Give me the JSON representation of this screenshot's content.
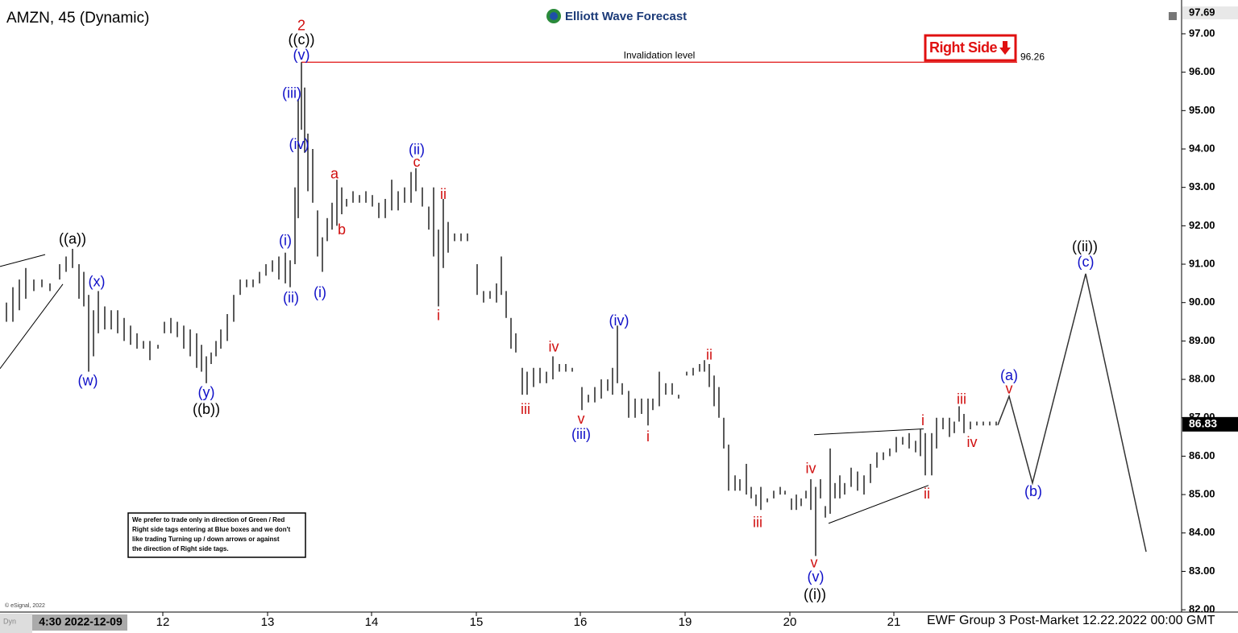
{
  "chart_data": {
    "type": "ohlc",
    "title": "AMZN, 45 (Dynamic)",
    "logo": "Elliott Wave Forecast",
    "tag": "Right Side",
    "footer": "EWF Group 3 Post-Market 12.22.2022 00:00 GMT",
    "copyright": "© eSignal, 2022",
    "corner": "Dyn",
    "note": [
      "We prefer to trade only in direction of Green / Red",
      "Right side tags entering at Blue boxes and we don't",
      "like trading Turning up / down arrows or against",
      "the direction of Right side tags."
    ],
    "xlim": [
      0,
      146.5
    ],
    "ylim": [
      81.94,
      97.88
    ],
    "xticks": [
      {
        "value": 20.2,
        "label": "12"
      },
      {
        "value": 33.2,
        "label": "13"
      },
      {
        "value": 46.1,
        "label": "14"
      },
      {
        "value": 59.1,
        "label": "15"
      },
      {
        "value": 72.0,
        "label": "16"
      },
      {
        "value": 85.0,
        "label": "19"
      },
      {
        "value": 98.0,
        "label": "20"
      },
      {
        "value": 110.9,
        "label": "21"
      }
    ],
    "cursor_label": {
      "value": 10.0,
      "label": "4:30 2022-12-09"
    },
    "yticks": [
      {
        "value": 82,
        "label": "82.00"
      },
      {
        "value": 83,
        "label": "83.00"
      },
      {
        "value": 84,
        "label": "84.00"
      },
      {
        "value": 85,
        "label": "85.00"
      },
      {
        "value": 86,
        "label": "86.00"
      },
      {
        "value": 87,
        "label": "87.00"
      },
      {
        "value": 88,
        "label": "88.00"
      },
      {
        "value": 89,
        "label": "89.00"
      },
      {
        "value": 90,
        "label": "90.00"
      },
      {
        "value": 91,
        "label": "91.00"
      },
      {
        "value": 92,
        "label": "92.00"
      },
      {
        "value": 93,
        "label": "93.00"
      },
      {
        "value": 94,
        "label": "94.00"
      },
      {
        "value": 95,
        "label": "95.00"
      },
      {
        "value": 96,
        "label": "96.00"
      },
      {
        "value": 97,
        "label": "97.00"
      }
    ],
    "top_price": 97.69,
    "last_price": 86.83,
    "bar_color": "#000000",
    "invalidation": {
      "value": 96.26,
      "label": "Invalidation level",
      "x": [
        37.4,
        126.2
      ],
      "color": "#e01010"
    },
    "bars": {
      "x": [
        0.8,
        1.6,
        2.4,
        3.2,
        4.2,
        5.2,
        6.2,
        7.4,
        8.2,
        9.0,
        9.8,
        10.4,
        11.0,
        11.6,
        12.2,
        13.0,
        13.8,
        14.6,
        15.4,
        16.2,
        17.0,
        17.8,
        18.6,
        19.6,
        20.4,
        21.2,
        22.0,
        22.8,
        23.6,
        24.4,
        25.0,
        25.6,
        26.2,
        26.8,
        27.4,
        28.2,
        29.0,
        29.8,
        30.6,
        31.4,
        32.2,
        33.0,
        33.8,
        34.6,
        35.4,
        36.0,
        36.6,
        37.0,
        37.4,
        37.8,
        38.2,
        38.8,
        39.4,
        40.0,
        40.6,
        41.2,
        41.8,
        42.4,
        43.0,
        43.8,
        44.6,
        45.4,
        46.2,
        47.0,
        47.8,
        48.6,
        49.4,
        50.2,
        51.0,
        51.6,
        52.4,
        53.2,
        53.8,
        54.4,
        55.0,
        55.6,
        56.4,
        57.2,
        58.0,
        59.2,
        60.0,
        60.8,
        61.6,
        62.2,
        62.8,
        63.4,
        64.0,
        64.8,
        65.4,
        66.2,
        67.0,
        67.8,
        68.6,
        69.4,
        70.2,
        71.0,
        72.2,
        73.0,
        73.8,
        74.6,
        75.4,
        76.0,
        76.6,
        77.2,
        78.0,
        78.8,
        79.6,
        80.4,
        81.0,
        81.8,
        82.6,
        83.4,
        84.2,
        85.2,
        86.0,
        86.8,
        87.4,
        88.0,
        88.6,
        89.2,
        89.8,
        90.4,
        91.2,
        91.8,
        92.6,
        93.2,
        93.8,
        94.4,
        95.2,
        96.0,
        96.8,
        97.4,
        98.2,
        98.8,
        99.4,
        100.0,
        100.6,
        101.2,
        101.8,
        102.4,
        103.0,
        103.6,
        104.2,
        104.8,
        105.6,
        106.4,
        107.2,
        108.0,
        108.8,
        109.6,
        110.4,
        111.2,
        112.0,
        112.8,
        113.6,
        114.2,
        114.8,
        115.6,
        116.2,
        117.0,
        117.8,
        118.4,
        119.0,
        119.6,
        120.4,
        121.2,
        122.0,
        122.8,
        123.6
      ],
      "high": [
        90.0,
        90.4,
        90.6,
        90.9,
        90.6,
        90.6,
        90.5,
        91.0,
        91.2,
        91.4,
        91.0,
        90.8,
        90.2,
        89.8,
        90.3,
        89.9,
        89.8,
        89.8,
        89.6,
        89.4,
        89.2,
        89.0,
        89.0,
        88.9,
        89.5,
        89.6,
        89.5,
        89.4,
        89.3,
        89.2,
        88.9,
        88.6,
        88.7,
        89.0,
        89.3,
        89.7,
        90.2,
        90.6,
        90.6,
        90.6,
        90.8,
        91.0,
        91.1,
        91.2,
        91.3,
        91.1,
        93.0,
        95.3,
        96.26,
        95.6,
        94.4,
        94.0,
        92.4,
        91.7,
        92.2,
        92.6,
        93.2,
        93.0,
        92.7,
        92.9,
        92.8,
        92.9,
        92.8,
        92.6,
        92.7,
        93.2,
        92.9,
        93.0,
        93.4,
        93.5,
        93.0,
        92.5,
        93.0,
        91.9,
        92.7,
        92.1,
        91.8,
        91.8,
        91.8,
        91.0,
        90.3,
        90.3,
        90.5,
        91.2,
        90.3,
        89.6,
        89.2,
        88.3,
        88.2,
        88.3,
        88.3,
        88.2,
        88.6,
        88.4,
        88.4,
        88.3,
        87.8,
        87.6,
        87.8,
        88.0,
        88.0,
        88.3,
        89.4,
        87.9,
        87.7,
        87.5,
        87.5,
        87.5,
        87.5,
        88.2,
        87.9,
        87.9,
        87.6,
        88.2,
        88.3,
        88.4,
        88.5,
        88.4,
        88.1,
        87.8,
        87.0,
        86.3,
        85.5,
        85.4,
        85.8,
        85.2,
        85.0,
        85.2,
        84.9,
        85.1,
        85.2,
        85.1,
        84.9,
        85.0,
        84.9,
        85.1,
        85.4,
        85.2,
        85.4,
        84.7,
        86.2,
        85.3,
        85.5,
        85.3,
        85.7,
        85.6,
        85.5,
        85.8,
        86.1,
        86.1,
        86.2,
        86.5,
        86.5,
        86.6,
        86.4,
        86.7,
        86.6,
        86.6,
        87.0,
        87.0,
        87.0,
        86.9,
        87.3,
        87.1,
        86.9,
        86.9,
        86.9,
        86.9,
        86.9
      ],
      "low": [
        89.5,
        89.5,
        89.8,
        90.1,
        90.3,
        90.4,
        90.3,
        90.6,
        90.8,
        90.9,
        90.1,
        89.9,
        88.2,
        88.6,
        89.2,
        89.3,
        89.3,
        89.2,
        89.0,
        88.9,
        88.8,
        88.8,
        88.5,
        88.8,
        89.2,
        89.2,
        89.1,
        88.8,
        88.6,
        88.3,
        88.2,
        87.9,
        88.4,
        88.6,
        88.8,
        89.0,
        89.5,
        90.2,
        90.4,
        90.4,
        90.5,
        90.7,
        90.8,
        90.6,
        90.5,
        90.4,
        91.0,
        92.2,
        94.5,
        93.9,
        92.9,
        92.6,
        91.2,
        90.8,
        91.6,
        91.9,
        92.0,
        92.3,
        92.5,
        92.6,
        92.6,
        92.6,
        92.5,
        92.2,
        92.2,
        92.4,
        92.4,
        92.6,
        92.6,
        92.9,
        92.5,
        91.9,
        91.2,
        89.9,
        90.9,
        91.3,
        91.6,
        91.6,
        91.6,
        90.2,
        90.0,
        90.1,
        90.0,
        90.2,
        89.6,
        88.8,
        88.7,
        87.6,
        87.6,
        87.8,
        87.9,
        87.9,
        88.0,
        88.2,
        88.2,
        88.2,
        87.2,
        87.4,
        87.4,
        87.5,
        87.7,
        87.6,
        87.9,
        87.6,
        87.0,
        87.0,
        87.1,
        86.8,
        87.2,
        87.3,
        87.6,
        87.6,
        87.5,
        88.1,
        88.1,
        88.2,
        88.2,
        87.8,
        87.3,
        87.0,
        86.2,
        85.1,
        85.1,
        85.1,
        85.0,
        84.9,
        84.7,
        84.6,
        84.8,
        84.9,
        85.0,
        85.0,
        84.6,
        84.6,
        84.7,
        84.9,
        84.6,
        83.4,
        84.9,
        84.4,
        84.5,
        84.9,
        84.9,
        85.0,
        85.2,
        85.1,
        85.0,
        85.3,
        85.7,
        85.9,
        86.0,
        86.1,
        86.3,
        86.2,
        86.1,
        86.0,
        85.5,
        85.5,
        86.2,
        86.7,
        86.5,
        86.6,
        86.9,
        86.6,
        86.7,
        86.8,
        86.8,
        86.8,
        86.8
      ]
    },
    "trendlines": [
      {
        "x": [
          0,
          5.6
        ],
        "y": [
          90.94,
          91.25
        ]
      },
      {
        "x": [
          0,
          7.8
        ],
        "y": [
          88.28,
          90.48
        ]
      },
      {
        "x": [
          101.0,
          114.6
        ],
        "y": [
          86.56,
          86.71
        ]
      },
      {
        "x": [
          102.8,
          115.2
        ],
        "y": [
          84.25,
          85.24
        ]
      }
    ],
    "projection": {
      "x": [
        123.8,
        125.2,
        128.1,
        134.7,
        142.2
      ],
      "y": [
        86.81,
        87.56,
        85.3,
        90.75,
        83.51
      ]
    },
    "annotations": [
      {
        "text": "((a))",
        "x": 9.0,
        "y": 91.63,
        "color": "#000000"
      },
      {
        "text": "(x)",
        "x": 12.0,
        "y": 90.52,
        "color": "#1010c8"
      },
      {
        "text": "(w)",
        "x": 10.9,
        "y": 87.94,
        "color": "#1010c8"
      },
      {
        "text": "(y)",
        "x": 25.6,
        "y": 87.64,
        "color": "#1010c8"
      },
      {
        "text": "((b))",
        "x": 25.6,
        "y": 87.2,
        "color": "#000000"
      },
      {
        "text": "(i)",
        "x": 35.4,
        "y": 91.59,
        "color": "#1010c8"
      },
      {
        "text": "(ii)",
        "x": 36.1,
        "y": 90.1,
        "color": "#1010c8"
      },
      {
        "text": "2",
        "x": 37.4,
        "y": 97.19,
        "color": "#d01010"
      },
      {
        "text": "((c))",
        "x": 37.4,
        "y": 96.83,
        "color": "#000000"
      },
      {
        "text": "(v)",
        "x": 37.4,
        "y": 96.43,
        "color": "#1010c8"
      },
      {
        "text": "(iii)",
        "x": 36.2,
        "y": 95.43,
        "color": "#1010c8"
      },
      {
        "text": "(iv)",
        "x": 37.1,
        "y": 94.1,
        "color": "#1010c8"
      },
      {
        "text": "(i)",
        "x": 39.7,
        "y": 90.24,
        "color": "#1010c8"
      },
      {
        "text": "a",
        "x": 41.5,
        "y": 93.33,
        "color": "#d01010"
      },
      {
        "text": "b",
        "x": 42.4,
        "y": 91.88,
        "color": "#d01010"
      },
      {
        "text": "(ii)",
        "x": 51.7,
        "y": 93.96,
        "color": "#1010c8"
      },
      {
        "text": "c",
        "x": 51.7,
        "y": 93.64,
        "color": "#d01010"
      },
      {
        "text": "ii",
        "x": 55.0,
        "y": 92.8,
        "color": "#d01010"
      },
      {
        "text": "i",
        "x": 54.4,
        "y": 89.64,
        "color": "#d01010"
      },
      {
        "text": "iii",
        "x": 65.2,
        "y": 87.2,
        "color": "#d01010"
      },
      {
        "text": "iv",
        "x": 68.7,
        "y": 88.82,
        "color": "#d01010"
      },
      {
        "text": "v",
        "x": 72.1,
        "y": 86.95,
        "color": "#d01010"
      },
      {
        "text": "(iii)",
        "x": 72.1,
        "y": 86.55,
        "color": "#1010c8"
      },
      {
        "text": "(iv)",
        "x": 76.8,
        "y": 89.51,
        "color": "#1010c8"
      },
      {
        "text": "i",
        "x": 80.4,
        "y": 86.49,
        "color": "#d01010"
      },
      {
        "text": "ii",
        "x": 88.0,
        "y": 88.61,
        "color": "#d01010"
      },
      {
        "text": "iii",
        "x": 94.0,
        "y": 84.25,
        "color": "#d01010"
      },
      {
        "text": "iv",
        "x": 100.6,
        "y": 85.66,
        "color": "#d01010"
      },
      {
        "text": "v",
        "x": 101.0,
        "y": 83.2,
        "color": "#d01010"
      },
      {
        "text": "(v)",
        "x": 101.2,
        "y": 82.84,
        "color": "#1010c8"
      },
      {
        "text": "((i))",
        "x": 101.1,
        "y": 82.38,
        "color": "#000000"
      },
      {
        "text": "i",
        "x": 114.5,
        "y": 86.91,
        "color": "#d01010"
      },
      {
        "text": "ii",
        "x": 115.0,
        "y": 85.0,
        "color": "#d01010"
      },
      {
        "text": "iii",
        "x": 119.3,
        "y": 87.46,
        "color": "#d01010"
      },
      {
        "text": "iv",
        "x": 120.6,
        "y": 86.34,
        "color": "#d01010"
      },
      {
        "text": "(a)",
        "x": 125.2,
        "y": 88.08,
        "color": "#1010c8"
      },
      {
        "text": "v",
        "x": 125.2,
        "y": 87.73,
        "color": "#d01010"
      },
      {
        "text": "(b)",
        "x": 128.2,
        "y": 85.06,
        "color": "#1010c8"
      },
      {
        "text": "((ii))",
        "x": 134.6,
        "y": 91.44,
        "color": "#000000"
      },
      {
        "text": "(c)",
        "x": 134.7,
        "y": 91.04,
        "color": "#1010c8"
      }
    ]
  }
}
